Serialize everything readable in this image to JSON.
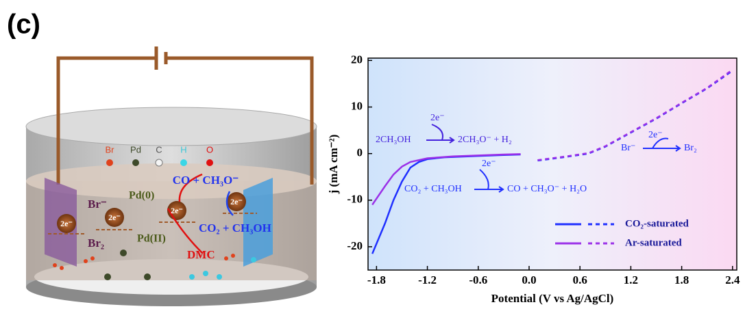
{
  "panel_label": "(c)",
  "diagram": {
    "atom_labels": [
      "Br",
      "Pd",
      "C",
      "H",
      "O"
    ],
    "labels": [
      "CO + CH₃O⁻",
      "Br⁻",
      "Pd(0)",
      "2e⁻",
      "2e⁻",
      "2e⁻",
      "2e⁻",
      "Br₂",
      "Pd(II)",
      "CO₂ + CH₃OH",
      "DMC"
    ]
  },
  "chart_data": {
    "type": "line",
    "x_label": "Potential (V vs Ag/AgCl)",
    "y_label": "j (mA cm⁻²)",
    "xlim": [
      -1.9,
      2.45
    ],
    "ylim": [
      -25,
      20.5
    ],
    "xticks": [
      -1.8,
      -1.2,
      -0.6,
      {
        "value": 0,
        "label": "0.0"
      },
      0.6,
      1.2,
      1.8,
      2.4
    ],
    "yticks": [
      -20,
      -10,
      0,
      10,
      20
    ],
    "legend": "lower right",
    "series": [
      {
        "name": "CO₂-saturated",
        "color": "#1f2fff",
        "segments": [
          {
            "style": "solid",
            "x": [
              -1.85,
              -1.7,
              -1.6,
              -1.5,
              -1.4,
              -1.3,
              -1.2,
              -1.0,
              -0.6,
              -0.3,
              -0.1
            ],
            "values": [
              -21.5,
              -15,
              -10,
              -6,
              -3,
              -1.8,
              -1.2,
              -0.8,
              -0.5,
              -0.3,
              -0.2
            ]
          },
          {
            "style": "dashed",
            "x": [
              0.1,
              0.4,
              0.7,
              0.9,
              1.2,
              1.5,
              1.8,
              2.1,
              2.4
            ],
            "values": [
              -1.5,
              -0.8,
              0,
              1.5,
              4.5,
              7.5,
              10.8,
              14,
              17.8
            ]
          }
        ]
      },
      {
        "name": "Ar-saturated",
        "color": "#9b30e8",
        "segments": [
          {
            "style": "solid",
            "x": [
              -1.85,
              -1.7,
              -1.6,
              -1.5,
              -1.4,
              -1.2,
              -0.9,
              -0.6,
              -0.3,
              -0.1
            ],
            "values": [
              -11,
              -7,
              -4.5,
              -2.8,
              -1.8,
              -1.0,
              -0.6,
              -0.4,
              -0.2,
              -0.1
            ]
          },
          {
            "style": "dashed",
            "x": [
              0.1,
              0.4,
              0.7,
              0.9,
              1.2,
              1.5,
              1.8,
              2.1,
              2.4
            ],
            "values": [
              -1.4,
              -0.7,
              0.1,
              1.6,
              4.6,
              7.6,
              10.9,
              14.1,
              18
            ]
          }
        ]
      }
    ],
    "annotations": [
      "2e⁻",
      "2CH₃OH",
      "2CH₃O⁻ + H₂",
      "2e⁻",
      "CO₂ + CH₃OH",
      "CO + CH₃O⁻ + H₂O",
      "2e⁻",
      "Br⁻",
      "Br₂"
    ]
  }
}
